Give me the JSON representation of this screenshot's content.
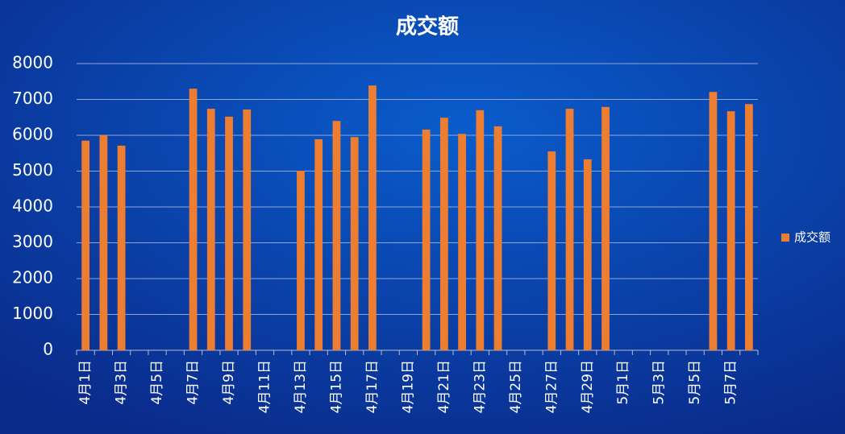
{
  "chart_data": {
    "type": "bar",
    "title": "成交额",
    "categories": [
      "4月1日",
      null,
      "4月3日",
      null,
      "4月5日",
      null,
      "4月7日",
      null,
      "4月9日",
      null,
      "4月11日",
      null,
      "4月13日",
      null,
      "4月15日",
      null,
      "4月17日",
      null,
      "4月19日",
      null,
      "4月21日",
      null,
      "4月23日",
      null,
      "4月25日",
      null,
      "4月27日",
      null,
      "4月29日",
      null,
      "5月1日",
      null,
      "5月3日",
      null,
      "5月5日",
      null,
      "5月7日",
      null
    ],
    "series": [
      {
        "name": "成交额",
        "color": "#ed7d31",
        "values": [
          5850,
          6000,
          5710,
          null,
          null,
          null,
          7300,
          6740,
          6520,
          6720,
          null,
          null,
          5010,
          5890,
          6400,
          5950,
          7390,
          null,
          null,
          6160,
          6490,
          6040,
          6700,
          6250,
          null,
          null,
          5550,
          6740,
          5330,
          6790,
          null,
          null,
          null,
          null,
          null,
          7210,
          6670,
          6870
        ]
      }
    ],
    "ylim": [
      0,
      8000
    ],
    "yticks": [
      0,
      1000,
      2000,
      3000,
      4000,
      5000,
      6000,
      7000,
      8000
    ],
    "grid": true,
    "legend": "right"
  }
}
